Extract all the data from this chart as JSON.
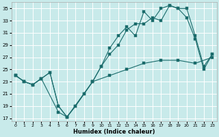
{
  "xlabel": "Humidex (Indice chaleur)",
  "bg_color": "#c8eaea",
  "grid_color": "#ffffff",
  "line_color": "#1a6b6b",
  "xlim": [
    -0.5,
    23.5
  ],
  "ylim": [
    16.5,
    36.0
  ],
  "xticks": [
    0,
    1,
    2,
    3,
    4,
    5,
    6,
    7,
    8,
    9,
    10,
    11,
    12,
    13,
    14,
    15,
    16,
    17,
    18,
    19,
    20,
    21,
    22,
    23
  ],
  "yticks": [
    17,
    19,
    21,
    23,
    25,
    27,
    29,
    31,
    33,
    35
  ],
  "line1_x": [
    0,
    1,
    2,
    3,
    4,
    5,
    6,
    7,
    8,
    9,
    10,
    11,
    12,
    13,
    14,
    15,
    16,
    17,
    18,
    19,
    20,
    21,
    22,
    23
  ],
  "line1_y": [
    24.0,
    23.0,
    22.5,
    23.5,
    24.5,
    19.0,
    17.2,
    19.0,
    21.0,
    23.0,
    25.5,
    28.5,
    30.5,
    32.0,
    30.5,
    34.5,
    33.0,
    35.0,
    35.5,
    35.0,
    35.0,
    30.5,
    25.5,
    27.5
  ],
  "line2_x": [
    0,
    1,
    2,
    3,
    4,
    5,
    6,
    7,
    8,
    9,
    10,
    11,
    12,
    13,
    14,
    15,
    16,
    17,
    18,
    19,
    20,
    21,
    22,
    23
  ],
  "line2_y": [
    24.0,
    23.0,
    22.5,
    23.5,
    24.5,
    19.0,
    17.2,
    19.0,
    21.0,
    23.0,
    25.5,
    27.5,
    29.0,
    31.5,
    32.5,
    32.5,
    33.5,
    33.0,
    35.5,
    35.0,
    33.5,
    30.0,
    25.0,
    27.5
  ],
  "line3_x": [
    0,
    1,
    2,
    3,
    5,
    6,
    9,
    11,
    13,
    15,
    17,
    19,
    21,
    23
  ],
  "line3_y": [
    24.0,
    23.0,
    22.5,
    23.5,
    18.0,
    17.2,
    23.0,
    24.0,
    25.0,
    26.0,
    26.5,
    26.5,
    26.0,
    27.0
  ],
  "marker_size": 2.2,
  "line_width": 0.8
}
